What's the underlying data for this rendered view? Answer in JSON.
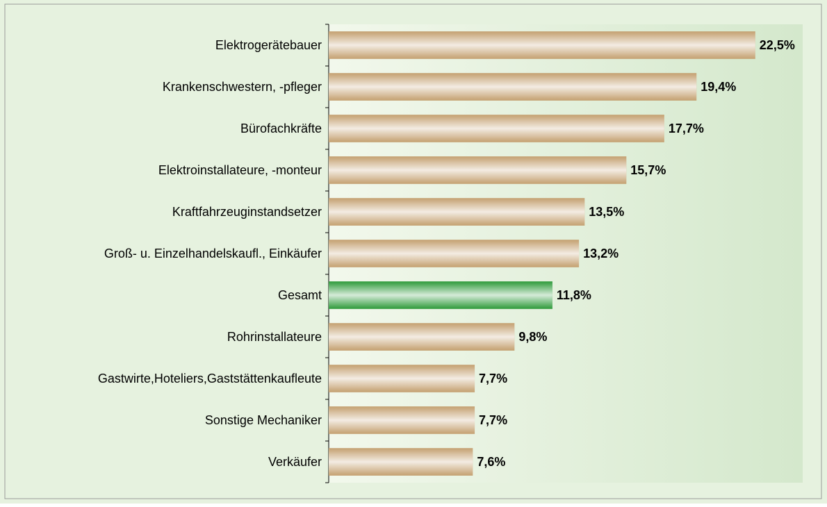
{
  "chart_data": {
    "type": "bar",
    "orientation": "horizontal",
    "categories": [
      "Elektrogerätebauer",
      "Krankenschwestern, -pfleger",
      "Bürofachkräfte",
      "Elektroinstallateure, -monteur",
      "Kraftfahrzeuginstandsetzer",
      "Groß- u. Einzelhandelskaufl., Einkäufer",
      "Gesamt",
      "Rohrinstallateure",
      "Gastwirte,Hoteliers,Gaststättenkaufleute",
      "Sonstige Mechaniker",
      "Verkäufer"
    ],
    "values": [
      22.5,
      19.4,
      17.7,
      15.7,
      13.5,
      13.2,
      11.8,
      9.8,
      7.7,
      7.7,
      7.6
    ],
    "value_labels": [
      "22,5%",
      "19,4%",
      "17,7%",
      "15,7%",
      "13,5%",
      "13,2%",
      "11,8%",
      "9,8%",
      "7,7%",
      "7,7%",
      "7,6%"
    ],
    "colors": [
      "#c4a070",
      "#c4a070",
      "#c4a070",
      "#c4a070",
      "#c4a070",
      "#c4a070",
      "#2e9a3a",
      "#c4a070",
      "#c4a070",
      "#c4a070",
      "#c4a070"
    ],
    "xlim": [
      0,
      25
    ]
  }
}
